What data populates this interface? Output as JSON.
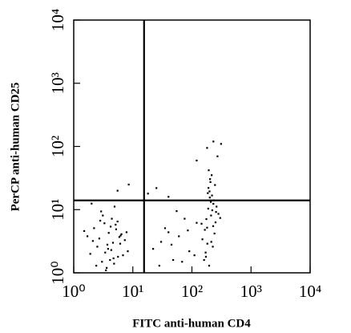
{
  "chart_data": {
    "type": "scatter",
    "xlabel": "FITC anti-human CD4",
    "ylabel": "PerCP anti-human CD25",
    "xscale": "log",
    "yscale": "log",
    "xlim": [
      1,
      10000
    ],
    "ylim": [
      1,
      10000
    ],
    "xticks": [
      {
        "value": 1,
        "label": "10⁰"
      },
      {
        "value": 10,
        "label": "10¹"
      },
      {
        "value": 100,
        "label": "10²"
      },
      {
        "value": 1000,
        "label": "10³"
      },
      {
        "value": 10000,
        "label": "10⁴"
      }
    ],
    "yticks": [
      {
        "value": 1,
        "label": "10⁰"
      },
      {
        "value": 10,
        "label": "10¹"
      },
      {
        "value": 100,
        "label": "10²"
      },
      {
        "value": 1000,
        "label": "10³"
      },
      {
        "value": 10000,
        "label": "10⁴"
      }
    ],
    "quadrant": {
      "x": 15.5,
      "y": 14
    },
    "color": "#000000",
    "x": [
      2.1,
      3.4,
      4.2,
      5.6,
      2.8,
      3.9,
      6.1,
      1.7,
      4.8,
      3.1,
      2.5,
      5.2,
      7.3,
      3.6,
      4.4,
      2.2,
      6.8,
      3.8,
      1.5,
      5.9,
      4.1,
      2.9,
      3.3,
      8.2,
      4.6,
      2.4,
      5.1,
      3.7,
      6.4,
      1.9,
      4.9,
      3.0,
      2.7,
      5.5,
      7.8,
      4.3,
      3.5,
      2.0,
      6.2,
      4.7,
      150,
      180,
      210,
      230,
      170,
      200,
      250,
      190,
      160,
      220,
      240,
      185,
      205,
      175,
      260,
      195,
      215,
      165,
      235,
      225,
      280,
      145,
      198,
      212,
      188,
      245,
      172,
      208,
      228,
      192,
      218,
      255,
      182,
      202,
      300,
      22,
      35,
      48,
      60,
      75,
      90,
      28,
      55,
      40,
      110,
      120,
      30,
      68,
      85,
      45,
      18,
      25,
      40,
      5.5,
      8.5,
      120,
      180,
      230,
      270,
      310
    ],
    "y": [
      3.2,
      2.1,
      5.4,
      1.8,
      6.7,
      4.3,
      2.9,
      3.8,
      1.4,
      8.1,
      2.6,
      4.9,
      3.3,
      1.2,
      7.2,
      5.1,
      1.9,
      2.4,
      4.6,
      3.7,
      1.6,
      9.4,
      6.1,
      2.2,
      3.0,
      1.3,
      5.8,
      2.8,
      4.1,
      2.0,
      11.2,
      1.5,
      3.5,
      6.5,
      4.4,
      2.3,
      1.1,
      12.5,
      3.9,
      1.7,
      3.4,
      5.2,
      8.1,
      12.4,
      2.1,
      15.6,
      6.3,
      22.1,
      1.6,
      9.8,
      4.2,
      18.3,
      27.4,
      7.1,
      11.2,
      1.3,
      35.2,
      4.8,
      14.1,
      2.6,
      8.6,
      6.0,
      19.5,
      3.1,
      10.4,
      24.6,
      1.8,
      13.3,
      5.5,
      42.1,
      16.8,
      9.2,
      2.9,
      30.5,
      7.4,
      2.4,
      5.1,
      1.6,
      3.8,
      7.2,
      2.2,
      1.3,
      9.5,
      4.4,
      1.9,
      6.2,
      3.1,
      1.5,
      4.7,
      2.8,
      18,
      22,
      16,
      20,
      25,
      60,
      95,
      120,
      70,
      110
    ]
  }
}
